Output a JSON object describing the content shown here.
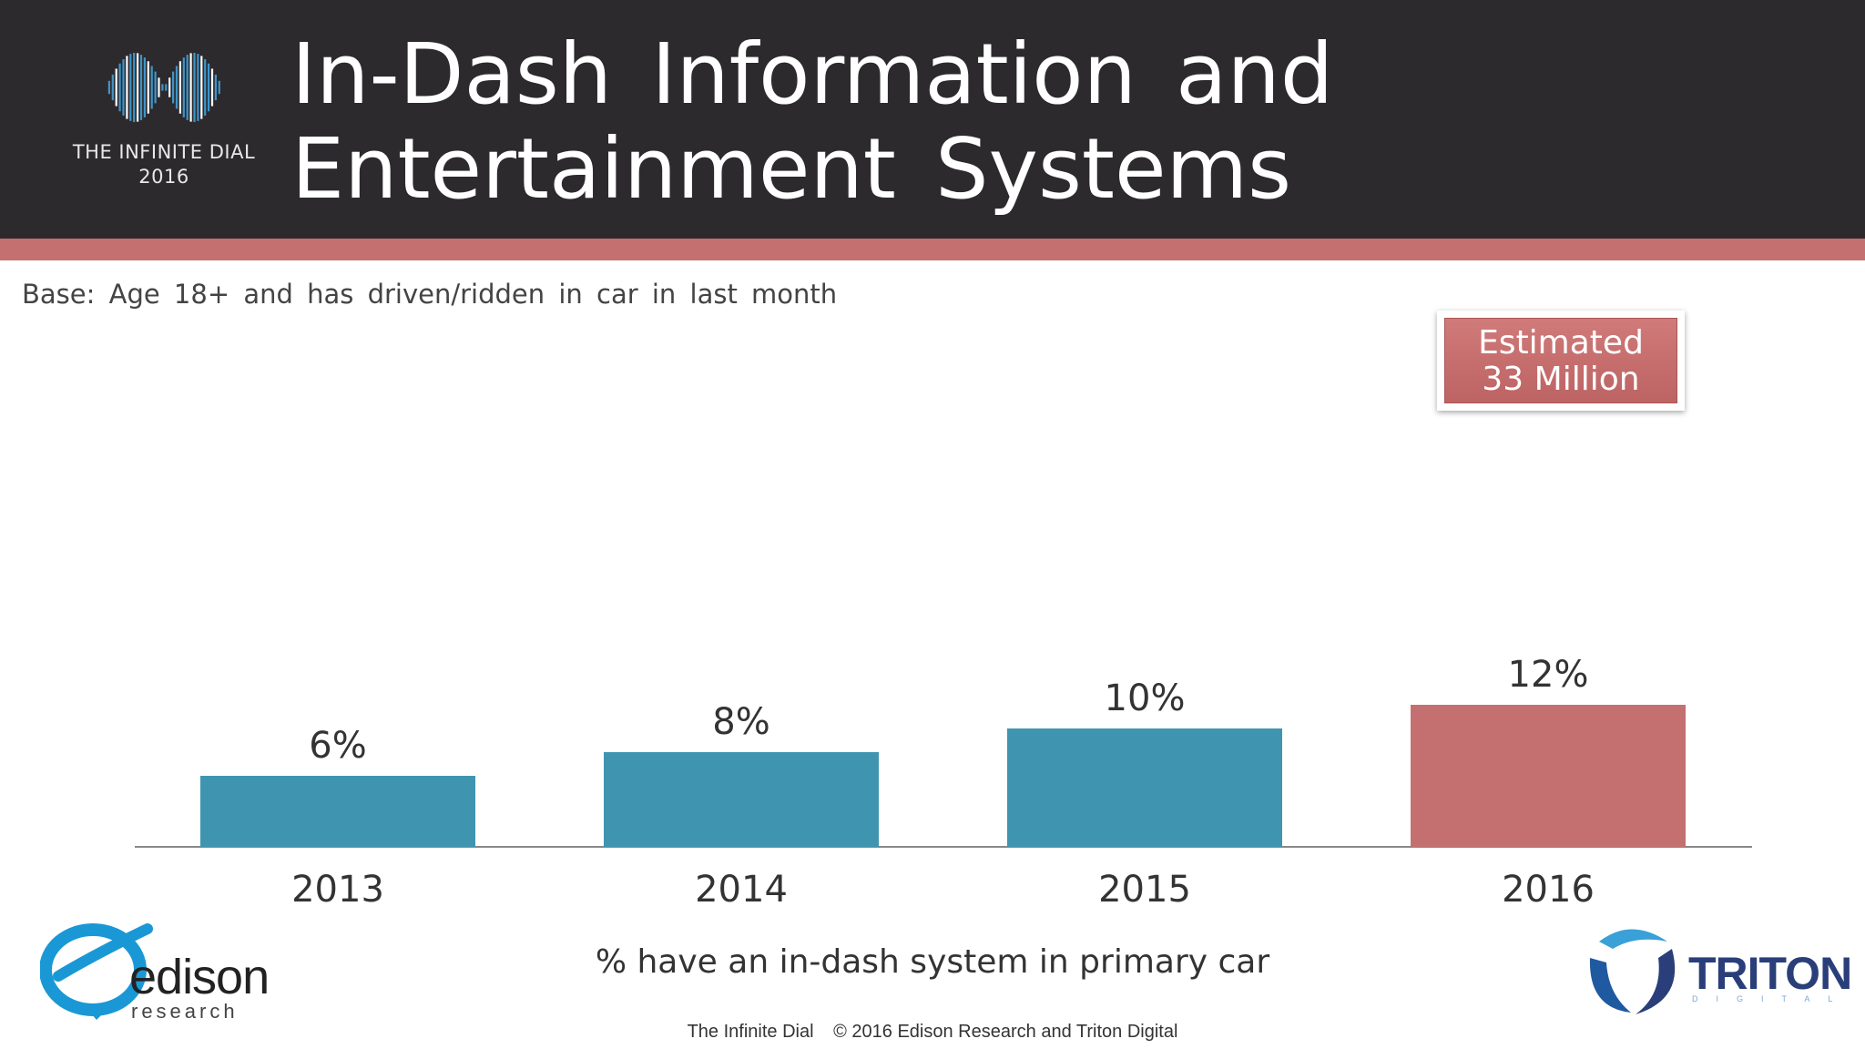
{
  "header": {
    "title_line1": "In-Dash Information and",
    "title_line2": "Entertainment Systems",
    "logo_text_line1": "THE INFINITE DIAL",
    "logo_text_line2": "2016",
    "logo_icon": "infinity-wave-icon"
  },
  "base_note": "Base: Age 18+ and has driven/ridden in car in last month",
  "callout": {
    "line1": "Estimated",
    "line2": "33 Million"
  },
  "chart_data": {
    "type": "bar",
    "categories": [
      "2013",
      "2014",
      "2015",
      "2016"
    ],
    "values": [
      6,
      8,
      10,
      12
    ],
    "value_labels": [
      "6%",
      "8%",
      "10%",
      "12%"
    ],
    "xlabel": "% have an in-dash system in primary car",
    "ylim": [
      0,
      100
    ],
    "grid": false,
    "colors": [
      "#3f95b0",
      "#3f95b0",
      "#3f95b0",
      "#c57070"
    ]
  },
  "footer": {
    "left": "The Infinite Dial",
    "right": "© 2016 Edison Research and Triton Digital"
  },
  "brand_left": {
    "name": "edison",
    "sub": "research",
    "icon": "edison-e-logo-icon"
  },
  "brand_right": {
    "name": "TRITON",
    "sub": "DIGITAL",
    "icon": "triton-swirl-logo-icon"
  },
  "colors": {
    "header_bg": "#2c2a2d",
    "stripe": "#c57070",
    "bar_blue": "#3f95b0",
    "bar_red": "#c57070"
  }
}
